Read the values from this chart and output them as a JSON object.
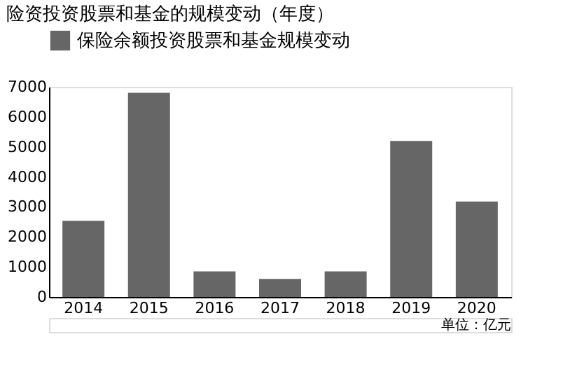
{
  "chart_data": {
    "type": "bar",
    "title": "险资投资股票和基金的规模变动（年度）",
    "categories": [
      "2014",
      "2015",
      "2016",
      "2017",
      "2018",
      "2019",
      "2020"
    ],
    "series": [
      {
        "name": "保险余额投资股票和基金规模变动",
        "color": "#666666",
        "values": [
          2540,
          6800,
          850,
          600,
          850,
          5200,
          3180
        ]
      }
    ],
    "ylim": [
      0,
      7000
    ],
    "yticks": [
      0,
      1000,
      2000,
      3000,
      4000,
      5000,
      6000,
      7000
    ],
    "grid": false,
    "legend": "top",
    "annotations": [
      "单位：亿元"
    ]
  }
}
